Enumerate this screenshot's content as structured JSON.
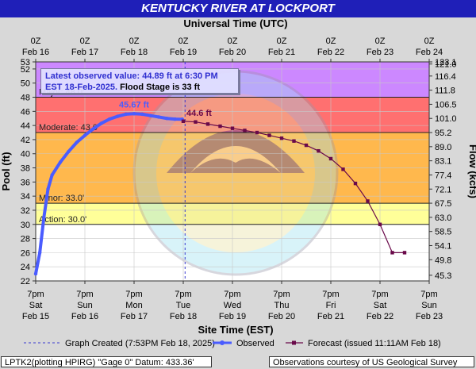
{
  "header": {
    "title": "KENTUCKY RIVER AT LOCKPORT"
  },
  "top_axis": {
    "title": "Universal Time (UTC)",
    "ticks": [
      {
        "hour": "0Z",
        "date": "Feb 16"
      },
      {
        "hour": "0Z",
        "date": "Feb 17"
      },
      {
        "hour": "0Z",
        "date": "Feb 18"
      },
      {
        "hour": "0Z",
        "date": "Feb 19"
      },
      {
        "hour": "0Z",
        "date": "Feb 20"
      },
      {
        "hour": "0Z",
        "date": "Feb 21"
      },
      {
        "hour": "0Z",
        "date": "Feb 22"
      },
      {
        "hour": "0Z",
        "date": "Feb 23"
      },
      {
        "hour": "0Z",
        "date": "Feb 24"
      }
    ]
  },
  "bottom_axis": {
    "title": "Site Time (EST)",
    "ticks": [
      {
        "time": "7pm",
        "day": "Sat",
        "date": "Feb 15"
      },
      {
        "time": "7pm",
        "day": "Sun",
        "date": "Feb 16"
      },
      {
        "time": "7pm",
        "day": "Mon",
        "date": "Feb 17"
      },
      {
        "time": "7pm",
        "day": "Tue",
        "date": "Feb 18"
      },
      {
        "time": "7pm",
        "day": "Wed",
        "date": "Feb 19"
      },
      {
        "time": "7pm",
        "day": "Thu",
        "date": "Feb 20"
      },
      {
        "time": "7pm",
        "day": "Fri",
        "date": "Feb 21"
      },
      {
        "time": "7pm",
        "day": "Sat",
        "date": "Feb 22"
      },
      {
        "time": "7pm",
        "day": "Sun",
        "date": "Feb 23"
      }
    ]
  },
  "callout": {
    "line1": "Latest observed value: 44.89 ft at 6:30 PM",
    "line2_highlight": "EST 18-Feb-2025.",
    "line2_rest": " Flood Stage is 33 ft"
  },
  "legend": {
    "graph_created": "Graph Created (7:53PM Feb 18, 2025)",
    "observed": "Observed",
    "forecast": "Forecast (issued 11:11AM Feb 18)"
  },
  "footer": {
    "left": "LPTK2(plotting HPIRG) \"Gage 0\" Datum: 433.36'",
    "right": "Observations courtesy of US Geological Survey"
  },
  "colors": {
    "major": "#cc88ff",
    "moderate": "#ff7070",
    "minor": "#ffb84d",
    "action": "#ffff99",
    "normal": "#ffffff",
    "observed": "#4a5cff",
    "forecast": "#6a0a4a",
    "title_bar": "#1f1fb8"
  },
  "chart_data": {
    "type": "line",
    "title": "KENTUCKY RIVER AT LOCKPORT",
    "xlabel": "Site Time (EST)",
    "ylabel": "Pool (ft)",
    "y2label": "Flow (kcfs)",
    "ylim": [
      22,
      53
    ],
    "xlim": [
      "2025-02-15T19:00",
      "2025-02-23T19:00"
    ],
    "yticks": [
      22,
      24,
      26,
      28,
      30,
      32,
      34,
      36,
      38,
      40,
      42,
      44,
      46,
      48,
      50,
      52,
      53
    ],
    "y2ticks": [
      {
        "stage": 22.8,
        "label": "45.3"
      },
      {
        "stage": 25.0,
        "label": "49.8"
      },
      {
        "stage": 27.0,
        "label": "54.1"
      },
      {
        "stage": 29.0,
        "label": "58.5"
      },
      {
        "stage": 31.0,
        "label": "63.0"
      },
      {
        "stage": 33.0,
        "label": "67.5"
      },
      {
        "stage": 35.0,
        "label": "72.1"
      },
      {
        "stage": 37.0,
        "label": "77.4"
      },
      {
        "stage": 39.0,
        "label": "83.1"
      },
      {
        "stage": 41.0,
        "label": "89.0"
      },
      {
        "stage": 43.0,
        "label": "95.2"
      },
      {
        "stage": 45.0,
        "label": "101.0"
      },
      {
        "stage": 47.0,
        "label": "106.5"
      },
      {
        "stage": 49.0,
        "label": "111.8"
      },
      {
        "stage": 51.0,
        "label": "116.4"
      },
      {
        "stage": 52.7,
        "label": "121.0"
      },
      {
        "stage": 53.0,
        "label": "123.1"
      }
    ],
    "flood_categories": [
      {
        "name": "Major",
        "label": "Major: 48.0'",
        "stage": 48.0
      },
      {
        "name": "Moderate",
        "label": "Moderate: 43.0'",
        "stage": 43.0
      },
      {
        "name": "Minor",
        "label": "Minor: 33.0'",
        "stage": 33.0
      },
      {
        "name": "Action",
        "label": "Action: 30.0'",
        "stage": 30.0
      }
    ],
    "graph_created": "2025-02-18T19:53",
    "series": [
      {
        "name": "Observed",
        "x": [
          "2025-02-15T19:00",
          "2025-02-15T21:00",
          "2025-02-15T23:00",
          "2025-02-16T01:00",
          "2025-02-16T03:00",
          "2025-02-16T07:00",
          "2025-02-16T11:00",
          "2025-02-16T15:00",
          "2025-02-16T19:00",
          "2025-02-16T23:00",
          "2025-02-17T03:00",
          "2025-02-17T07:00",
          "2025-02-17T11:00",
          "2025-02-17T15:00",
          "2025-02-17T19:00",
          "2025-02-17T23:00",
          "2025-02-18T03:00",
          "2025-02-18T07:00",
          "2025-02-18T11:00",
          "2025-02-18T15:00",
          "2025-02-18T18:30"
        ],
        "y": [
          23.0,
          26.0,
          31.0,
          35.0,
          37.0,
          38.8,
          40.3,
          41.6,
          42.6,
          43.5,
          44.3,
          44.9,
          45.3,
          45.6,
          45.67,
          45.6,
          45.4,
          45.2,
          45.0,
          44.9,
          44.89
        ],
        "peak_label": "45.67 ft"
      },
      {
        "name": "Forecast",
        "x": [
          "2025-02-18T19:00",
          "2025-02-19T01:00",
          "2025-02-19T07:00",
          "2025-02-19T13:00",
          "2025-02-19T19:00",
          "2025-02-20T01:00",
          "2025-02-20T07:00",
          "2025-02-20T13:00",
          "2025-02-20T19:00",
          "2025-02-21T01:00",
          "2025-02-21T07:00",
          "2025-02-21T13:00",
          "2025-02-21T19:00",
          "2025-02-22T01:00",
          "2025-02-22T07:00",
          "2025-02-22T13:00",
          "2025-02-22T19:00",
          "2025-02-23T01:00",
          "2025-02-23T07:00"
        ],
        "y": [
          44.6,
          44.5,
          44.2,
          43.9,
          43.6,
          43.3,
          43.0,
          42.6,
          42.2,
          41.8,
          41.2,
          40.4,
          39.3,
          37.8,
          35.8,
          33.3,
          30.0,
          26.0,
          26.0
        ],
        "first_label": "44.6 ft"
      }
    ]
  }
}
